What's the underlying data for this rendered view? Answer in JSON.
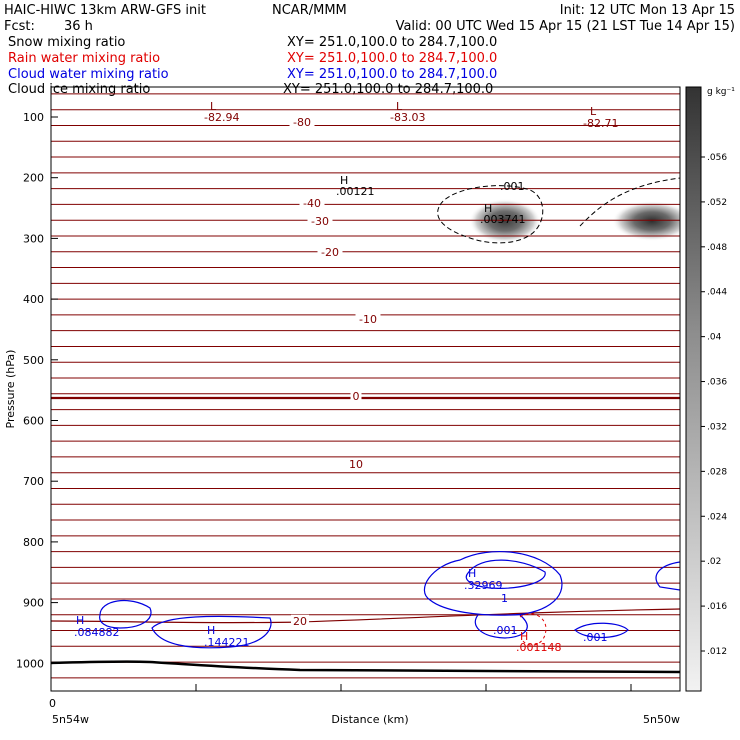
{
  "header": {
    "title": "HAIC-HIWC 13km ARW-GFS init",
    "org": "NCAR/MMM",
    "init": "Init: 12 UTC Mon 13 Apr 15",
    "fcst_label": "Fcst:",
    "fcst_value": "36 h",
    "valid": "Valid: 00 UTC Wed 15 Apr 15 (21 LST Tue 14 Apr 15)"
  },
  "fields": [
    {
      "name": "Snow mixing ratio",
      "xy": "XY= 251.0,100.0 to 284.7,100.0",
      "color": "#000000"
    },
    {
      "name": "Rain water mixing ratio",
      "xy": "XY= 251.0,100.0 to 284.7,100.0",
      "color": "#e00000"
    },
    {
      "name": "Cloud water mixing ratio",
      "xy": "XY= 251.0,100.0 to 284.7,100.0",
      "color": "#0000e0"
    },
    {
      "name": "Cloud ice mixing ratio",
      "xy": "XY= 251.0,100.0 to 284.7,100.0",
      "color": "#000000"
    }
  ],
  "colors": {
    "temperature": "#800000",
    "rain": "#e00000",
    "cloud_water": "#0000e0",
    "ice": "#000000"
  },
  "chart_data": {
    "type": "contour",
    "xlabel": "Distance (km)",
    "ylabel": "Pressure (hPa)",
    "x_left_label": "5n54w",
    "x_right_label": "5n50w",
    "x_zero_label": "0",
    "y_axis": {
      "range": [
        1050,
        50
      ],
      "ticks": [
        100,
        200,
        300,
        400,
        500,
        600,
        700,
        800,
        900,
        1000
      ]
    },
    "colorbar": {
      "unit": "g kg⁻¹",
      "ticks": [
        ".056",
        ".052",
        ".048",
        ".044",
        ".04",
        ".036",
        ".032",
        ".028",
        ".024",
        ".02",
        ".016",
        ".012"
      ]
    },
    "temperature_contours": [
      {
        "label": "-80",
        "p": 108
      },
      {
        "label": "-40",
        "p": 242
      },
      {
        "label": "-30",
        "p": 271
      },
      {
        "label": "-20",
        "p": 322
      },
      {
        "label": "-10",
        "p": 433
      },
      {
        "label": "0",
        "p": 560
      },
      {
        "label": "10",
        "p": 672
      },
      {
        "label": "20",
        "p": 930
      }
    ],
    "annotations": [
      {
        "marker": "L",
        "value": "-82.94",
        "field": "temperature"
      },
      {
        "marker": "L",
        "value": "-83.03",
        "field": "temperature"
      },
      {
        "marker": "L",
        "value": "-82.71",
        "field": "temperature"
      },
      {
        "marker": "H",
        "value": ".00121",
        "field": "ice"
      },
      {
        "marker": "H",
        "value": ".003741",
        "field": "ice"
      },
      {
        "marker": "",
        "value": ".001",
        "field": "ice"
      },
      {
        "marker": "H",
        "value": ".32969",
        "field": "cloud_water"
      },
      {
        "marker": "",
        "value": "1",
        "field": "cloud_water"
      },
      {
        "marker": "H",
        "value": ".084882",
        "field": "cloud_water"
      },
      {
        "marker": "H",
        "value": ".144221",
        "field": "cloud_water"
      },
      {
        "marker": "",
        "value": ".001",
        "field": "cloud_water"
      },
      {
        "marker": "",
        "value": ".001",
        "field": "cloud_water"
      },
      {
        "marker": "H",
        "value": ".001148",
        "field": "rain"
      }
    ]
  }
}
